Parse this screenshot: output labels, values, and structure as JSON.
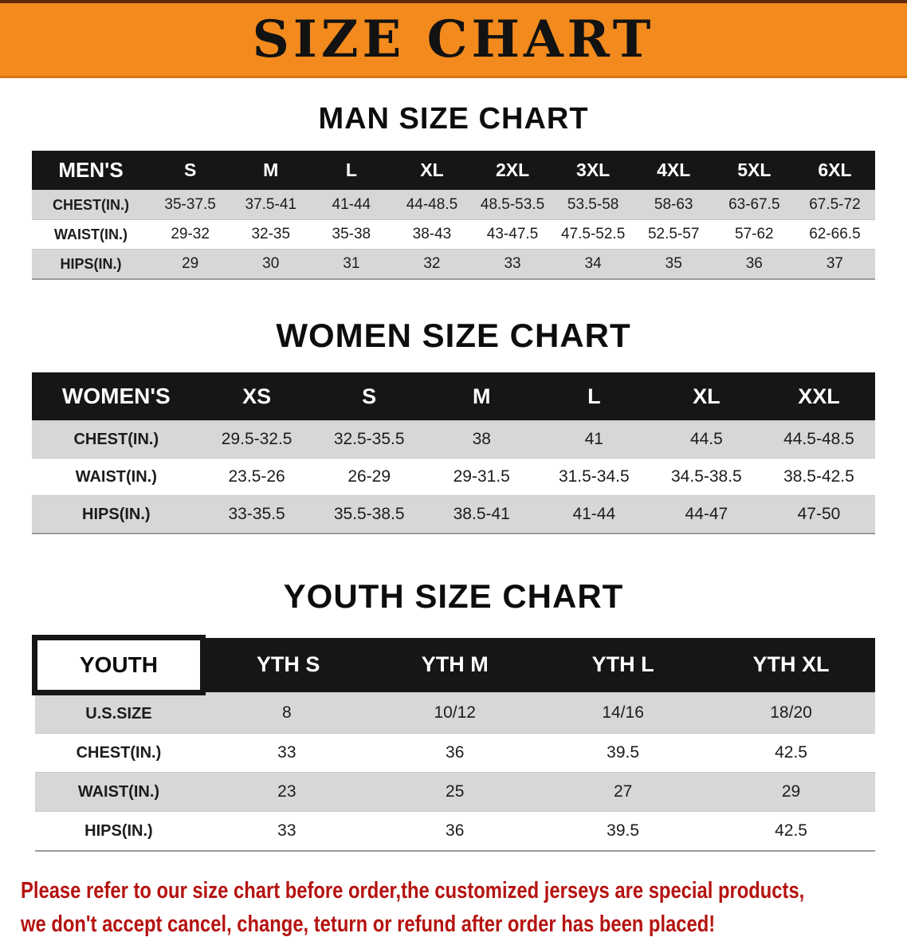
{
  "colors": {
    "banner-bg": "#f28a1e",
    "banner-title": "#121212",
    "header-bg": "#161616",
    "header-text": "#ffffff",
    "row-shade": "#d7d7d7",
    "footer-text": "#b51310"
  },
  "banner": {
    "title": "SIZE CHART"
  },
  "man_section": {
    "heading": "MAN SIZE CHART",
    "table": {
      "header": [
        "MEN'S",
        "S",
        "M",
        "L",
        "XL",
        "2XL",
        "3XL",
        "4XL",
        "5XL",
        "6XL"
      ],
      "rows": [
        {
          "label": "CHEST(IN.)",
          "values": [
            "35-37.5",
            "37.5-41",
            "41-44",
            "44-48.5",
            "48.5-53.5",
            "53.5-58",
            "58-63",
            "63-67.5",
            "67.5-72"
          ]
        },
        {
          "label": "WAIST(IN.)",
          "values": [
            "29-32",
            "32-35",
            "35-38",
            "38-43",
            "43-47.5",
            "47.5-52.5",
            "52.5-57",
            "57-62",
            "62-66.5"
          ]
        },
        {
          "label": "HIPS(IN.)",
          "values": [
            "29",
            "30",
            "31",
            "32",
            "33",
            "34",
            "35",
            "36",
            "37"
          ]
        }
      ]
    }
  },
  "women_section": {
    "heading": "WOMEN SIZE CHART",
    "table": {
      "header": [
        "WOMEN'S",
        "XS",
        "S",
        "M",
        "L",
        "XL",
        "XXL"
      ],
      "rows": [
        {
          "label": "CHEST(IN.)",
          "values": [
            "29.5-32.5",
            "32.5-35.5",
            "38",
            "41",
            "44.5",
            "44.5-48.5"
          ]
        },
        {
          "label": "WAIST(IN.)",
          "values": [
            "23.5-26",
            "26-29",
            "29-31.5",
            "31.5-34.5",
            "34.5-38.5",
            "38.5-42.5"
          ]
        },
        {
          "label": "HIPS(IN.)",
          "values": [
            "33-35.5",
            "35.5-38.5",
            "38.5-41",
            "41-44",
            "44-47",
            "47-50"
          ]
        }
      ]
    }
  },
  "youth_section": {
    "heading": "YOUTH SIZE CHART",
    "table": {
      "header": [
        "YOUTH",
        "YTH S",
        "YTH M",
        "YTH L",
        "YTH XL"
      ],
      "rows": [
        {
          "label": "U.S.SIZE",
          "values": [
            "8",
            "10/12",
            "14/16",
            "18/20"
          ]
        },
        {
          "label": "CHEST(IN.)",
          "values": [
            "33",
            "36",
            "39.5",
            "42.5"
          ]
        },
        {
          "label": "WAIST(IN.)",
          "values": [
            "23",
            "25",
            "27",
            "29"
          ]
        },
        {
          "label": "HIPS(IN.)",
          "values": [
            "33",
            "36",
            "39.5",
            "42.5"
          ]
        }
      ]
    }
  },
  "footer": {
    "line1": "Please refer to our size chart before order,the customized jerseys are special products,",
    "line2": "we don't accept cancel, change, teturn or refund after order has been placed!"
  }
}
